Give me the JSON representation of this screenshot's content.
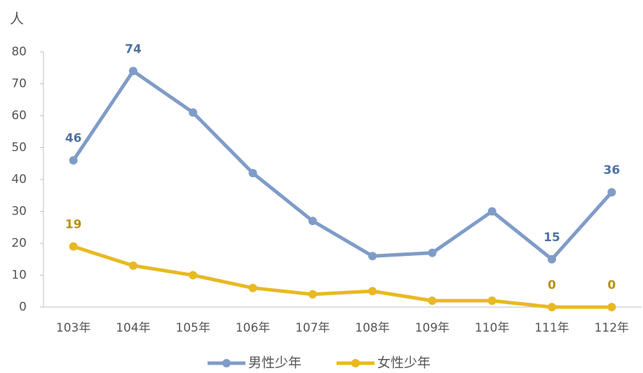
{
  "chart_data": {
    "type": "line",
    "y_label": "人",
    "categories": [
      "103年",
      "104年",
      "105年",
      "106年",
      "107年",
      "108年",
      "109年",
      "110年",
      "111年",
      "112年"
    ],
    "series": [
      {
        "name": "男性少年",
        "color": "#7f9cc8",
        "label_color": "#4f71a3",
        "values": [
          46,
          74,
          61,
          42,
          27,
          16,
          17,
          30,
          15,
          36
        ],
        "value_labels": [
          "46",
          "74",
          null,
          null,
          null,
          null,
          null,
          null,
          "15",
          "36"
        ]
      },
      {
        "name": "女性少年",
        "color": "#e8b922",
        "label_color": "#b8920e",
        "values": [
          19,
          13,
          10,
          6,
          4,
          5,
          2,
          2,
          0,
          0
        ],
        "value_labels": [
          "19",
          null,
          null,
          null,
          null,
          null,
          null,
          null,
          "0",
          "0"
        ]
      }
    ],
    "ylim": [
      0,
      80
    ],
    "yticks": [
      0,
      10,
      20,
      30,
      40,
      50,
      60,
      70,
      80
    ],
    "grid": false
  }
}
